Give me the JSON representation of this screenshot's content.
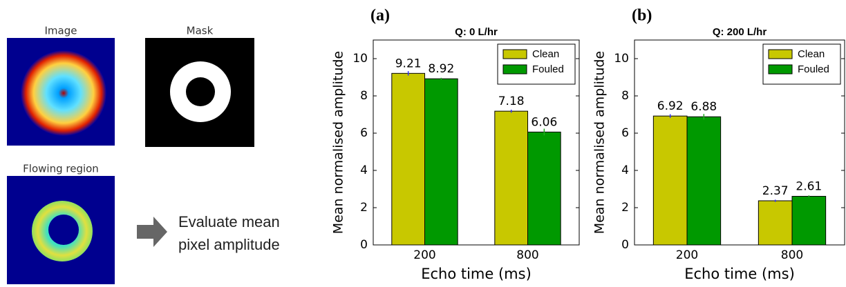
{
  "left_panel": {
    "image_label": "Image",
    "mask_label": "Mask",
    "flowing_label": "Flowing region",
    "caption_lines": [
      "Evaluate mean",
      "pixel amplitude"
    ]
  },
  "chart_data": [
    {
      "type": "bar",
      "label": "(a)",
      "title": "Q: 0 L/hr",
      "x_label": "Echo time (ms)",
      "y_label": "Mean normalised amplitude",
      "categories": [
        "200",
        "800"
      ],
      "series": [
        {
          "name": "Clean",
          "color": "#c8c800",
          "values": [
            9.21,
            7.18
          ],
          "errors": [
            0.12,
            0.08
          ]
        },
        {
          "name": "Fouled",
          "color": "#009900",
          "values": [
            8.92,
            6.06
          ],
          "errors": [
            0.05,
            0.18
          ]
        }
      ],
      "ylim": [
        0,
        11
      ],
      "yticks": [
        0,
        2,
        4,
        6,
        8,
        10
      ],
      "legend": "upper right"
    },
    {
      "type": "bar",
      "label": "(b)",
      "title": "Q: 200 L/hr",
      "x_label": "Echo time (ms)",
      "y_label": "Mean normalised amplitude",
      "categories": [
        "200",
        "800"
      ],
      "series": [
        {
          "name": "Clean",
          "color": "#c8c800",
          "values": [
            6.92,
            2.37
          ],
          "errors": [
            0.1,
            0.06
          ]
        },
        {
          "name": "Fouled",
          "color": "#009900",
          "values": [
            6.88,
            2.61
          ],
          "errors": [
            0.15,
            0.05
          ]
        }
      ],
      "ylim": [
        0,
        11
      ],
      "yticks": [
        0,
        2,
        4,
        6,
        8,
        10
      ],
      "legend": "upper right"
    }
  ]
}
